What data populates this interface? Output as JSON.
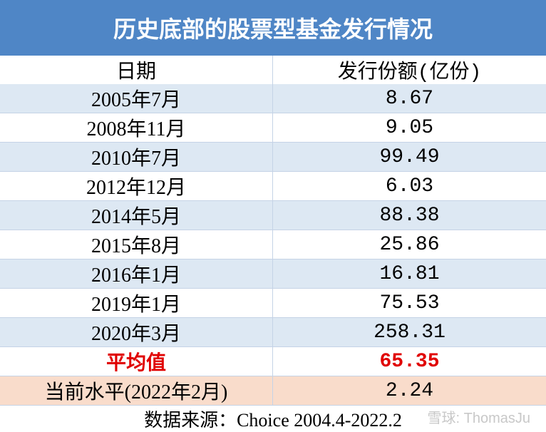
{
  "title": "历史底部的股票型基金发行情况",
  "table": {
    "header": [
      "日期",
      "发行份额(亿份)"
    ],
    "rows": [
      [
        "2005年7月",
        "8.67"
      ],
      [
        "2008年11月",
        "9.05"
      ],
      [
        "2010年7月",
        "99.49"
      ],
      [
        "2012年12月",
        "6.03"
      ],
      [
        "2014年5月",
        "88.38"
      ],
      [
        "2015年8月",
        "25.86"
      ],
      [
        "2016年1月",
        "16.81"
      ],
      [
        "2019年1月",
        "75.53"
      ],
      [
        "2020年3月",
        "258.31"
      ]
    ],
    "average": [
      "平均值",
      "65.35"
    ],
    "current": [
      "当前水平(2022年2月)",
      "2.24"
    ]
  },
  "source": "数据来源：Choice 2004.4-2022.2",
  "watermark": "雪球: ThomasJu"
}
